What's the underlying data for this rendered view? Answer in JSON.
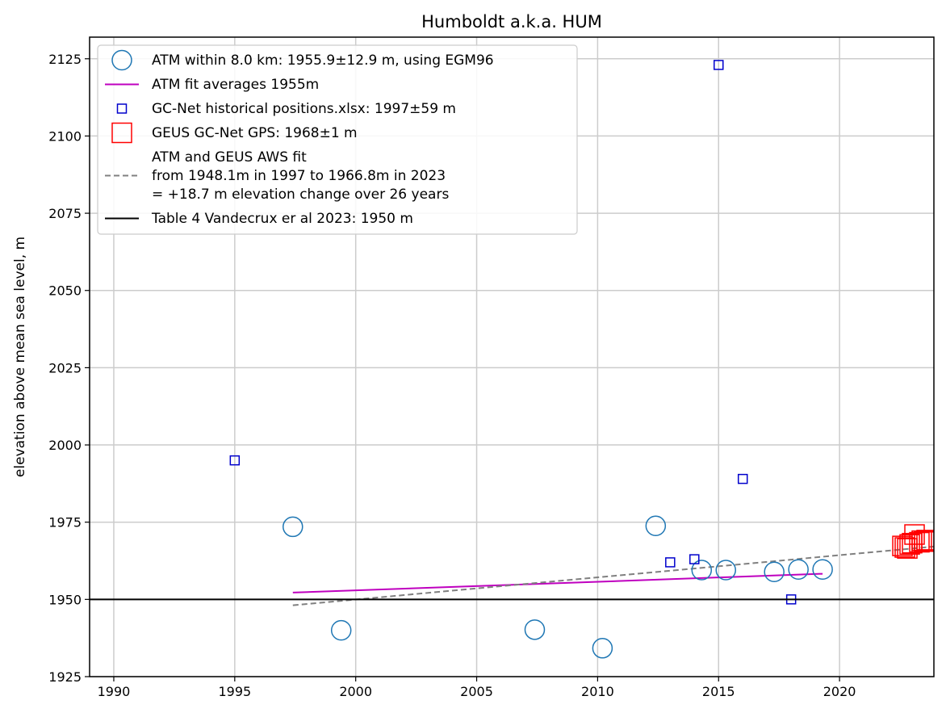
{
  "chart_data": {
    "type": "scatter",
    "title": "Humboldt a.k.a. HUM",
    "xlabel": "",
    "ylabel": "elevation above mean sea level, m",
    "xlim": [
      1989,
      2023.9
    ],
    "ylim": [
      1925,
      2132
    ],
    "grid": true,
    "legend_position": "upper-left",
    "xticks": [
      1990,
      1995,
      2000,
      2005,
      2010,
      2015,
      2020
    ],
    "yticks": [
      1925,
      1950,
      1975,
      2000,
      2025,
      2050,
      2075,
      2100,
      2125
    ],
    "series": [
      {
        "name": "ATM within 8.0 km: 1955.9±12.9 m, using EGM96",
        "kind": "scatter",
        "marker": "circle-open",
        "color": "#1f77b4",
        "points": [
          [
            1997.4,
            1973.5
          ],
          [
            1999.4,
            1940.0
          ],
          [
            2007.4,
            1940.2
          ],
          [
            2010.2,
            1934.2
          ],
          [
            2012.4,
            1973.8
          ],
          [
            2014.3,
            1959.5
          ],
          [
            2015.3,
            1959.5
          ],
          [
            2017.3,
            1958.9
          ],
          [
            2018.3,
            1959.7
          ],
          [
            2019.3,
            1959.7
          ]
        ]
      },
      {
        "name": "ATM fit averages 1955m",
        "kind": "line",
        "style": "solid",
        "color": "#bf00bf",
        "points": [
          [
            1997.4,
            1952.2
          ],
          [
            2019.3,
            1958.3
          ]
        ]
      },
      {
        "name": "GC-Net historical positions.xlsx: 1997±59 m",
        "kind": "scatter",
        "marker": "square-open-small",
        "color": "#0000cc",
        "points": [
          [
            1995.0,
            1995.0
          ],
          [
            2013.0,
            1962.0
          ],
          [
            2014.0,
            1963.0
          ],
          [
            2015.0,
            2123.0
          ],
          [
            2016.0,
            1989.0
          ],
          [
            2018.0,
            1950.0
          ]
        ]
      },
      {
        "name": "GEUS GC-Net GPS: 1968±1 m",
        "kind": "scatter",
        "marker": "square-open-large",
        "color": "#ff0000",
        "points": [
          [
            2022.6,
            1967.3
          ],
          [
            2022.7,
            1966.8
          ],
          [
            2022.8,
            1966.5
          ],
          [
            2022.9,
            1967.8
          ],
          [
            2023.0,
            1968.2
          ],
          [
            2023.1,
            1971.0
          ],
          [
            2023.3,
            1968.5
          ],
          [
            2023.4,
            1969.0
          ],
          [
            2023.5,
            1968.8
          ],
          [
            2023.6,
            1969.2
          ],
          [
            2023.8,
            1968.7
          ]
        ]
      },
      {
        "name": "ATM and GEUS AWS fit\nfrom 1948.1m in 1997 to 1966.8m in 2023\n= +18.7 m elevation change over 26 years",
        "kind": "line",
        "style": "dashed",
        "color": "#808080",
        "points": [
          [
            1997.4,
            1948.1
          ],
          [
            2023.9,
            1967.1
          ]
        ]
      },
      {
        "name": "Table 4 Vandecrux er al 2023: 1950 m",
        "kind": "hline",
        "style": "solid",
        "color": "#000000",
        "y": 1950
      }
    ]
  }
}
